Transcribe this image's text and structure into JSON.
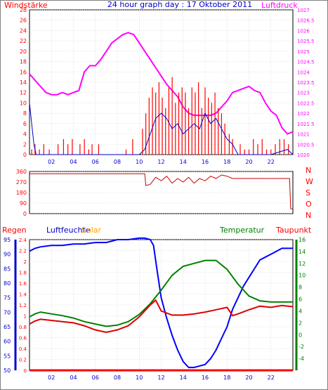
{
  "title": "24 hour graph day : 17 Oktober 2011",
  "colors": {
    "wind": "#ff0000",
    "gust": "#0000cc",
    "pressure": "#ff00ff",
    "direction": "#cc0000",
    "rain": "#ff0000",
    "humidity": "#0000ff",
    "solar": "#ffa500",
    "temperature": "#008000",
    "dewpoint": "#dd0000",
    "frame": "#000000",
    "grid": "#c0c0c0"
  },
  "chart_data": [
    {
      "type": "line",
      "labels": {
        "left": "Windstärke",
        "right": "Luftdruck"
      },
      "x_ticks": [
        "02",
        "04",
        "06",
        "08",
        "10",
        "12",
        "14",
        "16",
        "18",
        "20",
        "22"
      ],
      "x_range": [
        0,
        24
      ],
      "y_left": {
        "ticks": [
          "0",
          "2",
          "4",
          "6",
          "8",
          "10",
          "12",
          "14",
          "16",
          "18",
          "20",
          "22",
          "24",
          "26",
          "28"
        ],
        "range": [
          0,
          28
        ]
      },
      "y_right": {
        "ticks": [
          "1020",
          "1020.5",
          "1021",
          "1021.5",
          "1022",
          "1022.5",
          "1023",
          "1023.5",
          "1024",
          "1024.5",
          "1025",
          "1025.5",
          "1026",
          "1026.5",
          "1027"
        ],
        "range": [
          1020,
          1027
        ]
      },
      "series": [
        {
          "key": "pressure",
          "axis": "right",
          "x": [
            0,
            0.5,
            1,
            1.5,
            2,
            2.5,
            3,
            3.5,
            4,
            4.5,
            5,
            5.5,
            6,
            6.5,
            7,
            7.5,
            8,
            8.5,
            9,
            9.5,
            10,
            10.5,
            11,
            11.5,
            12,
            12.5,
            13,
            13.5,
            14,
            14.5,
            15,
            15.5,
            16,
            16.5,
            17,
            17.5,
            18,
            18.5,
            19,
            19.5,
            20,
            20.5,
            21,
            21.5,
            22,
            22.5,
            23,
            23.5,
            24
          ],
          "y": [
            1023.9,
            1023.6,
            1023.3,
            1023.0,
            1022.9,
            1022.9,
            1023.0,
            1022.9,
            1023.0,
            1023.1,
            1024.0,
            1024.3,
            1024.3,
            1024.6,
            1025.0,
            1025.4,
            1025.6,
            1025.8,
            1025.9,
            1025.8,
            1025.4,
            1025.0,
            1024.6,
            1024.2,
            1023.8,
            1023.4,
            1023.1,
            1022.8,
            1022.3,
            1022.0,
            1021.9,
            1021.9,
            1021.9,
            1021.9,
            1022.0,
            1022.3,
            1022.6,
            1023.0,
            1023.1,
            1023.2,
            1023.3,
            1023.1,
            1023.0,
            1022.5,
            1022.1,
            1021.9,
            1021.3,
            1021.0,
            1021.1
          ]
        },
        {
          "key": "wind",
          "axis": "left",
          "style": "bars",
          "x": [
            0.2,
            0.5,
            0.9,
            1.3,
            1.8,
            2.6,
            3.1,
            3.5,
            3.9,
            4.6,
            5.0,
            5.4,
            5.7,
            6.3,
            8.8,
            9.4,
            10.3,
            10.6,
            10.9,
            11.2,
            11.5,
            11.8,
            12.1,
            12.4,
            12.7,
            13.0,
            13.3,
            13.6,
            13.9,
            14.2,
            14.5,
            14.8,
            15.1,
            15.4,
            15.7,
            16.0,
            16.3,
            16.6,
            16.9,
            17.2,
            17.5,
            17.8,
            18.2,
            18.5,
            19.2,
            19.6,
            20.0,
            20.4,
            20.8,
            21.2,
            21.6,
            22.0,
            22.4,
            22.8,
            23.2,
            23.6
          ],
          "y": [
            1,
            2,
            1,
            2,
            1,
            2,
            3,
            2,
            3,
            2,
            3,
            1,
            2,
            2,
            1,
            3,
            5,
            8,
            11,
            13,
            12,
            14,
            11,
            9,
            13,
            15,
            10,
            12,
            13,
            12,
            9,
            13,
            12,
            14,
            9,
            13,
            11,
            10,
            12,
            9,
            8,
            6,
            4,
            3,
            2,
            1,
            1,
            3,
            2,
            3,
            1,
            1,
            2,
            3,
            3,
            2
          ]
        },
        {
          "key": "gust",
          "axis": "left",
          "x": [
            0,
            0.2,
            0.4,
            0.6,
            1,
            4,
            8,
            10,
            10.5,
            11,
            11.5,
            12,
            12.5,
            13,
            13.5,
            14,
            14.5,
            15,
            15.5,
            16,
            16.5,
            17,
            17.5,
            18,
            18.5,
            19,
            20,
            22,
            23.5,
            24
          ],
          "y": [
            10,
            6,
            2,
            0,
            0,
            0,
            0,
            0,
            1,
            4,
            7,
            8,
            7,
            5,
            6,
            4,
            5,
            6,
            5,
            8,
            6,
            7,
            5,
            3,
            2,
            0,
            0,
            0,
            1,
            0
          ]
        }
      ]
    },
    {
      "type": "line",
      "labels": {
        "right": [
          "N",
          "W",
          "S",
          "O",
          "N"
        ]
      },
      "x_range": [
        0,
        24
      ],
      "y_left": {
        "ticks": [
          "0",
          "90",
          "180",
          "270",
          "360"
        ],
        "range": [
          0,
          360
        ]
      },
      "series": [
        {
          "key": "direction",
          "x": [
            0,
            10.5,
            10.6,
            11,
            11.5,
            12,
            12.5,
            13,
            13.5,
            14,
            14.5,
            15,
            15.5,
            16,
            16.5,
            17,
            17.5,
            18,
            18.5,
            19,
            20,
            22,
            23.7,
            23.8,
            24
          ],
          "y": [
            340,
            340,
            240,
            250,
            310,
            280,
            320,
            260,
            300,
            270,
            310,
            260,
            300,
            280,
            320,
            300,
            330,
            320,
            300,
            300,
            300,
            300,
            300,
            40,
            40
          ]
        }
      ]
    },
    {
      "type": "line",
      "labels": {
        "left1": "Regen",
        "left2": "Luftfeuchte",
        "left3": "Solar",
        "right1": "Temperatur",
        "right2": "Taupunkt"
      },
      "x_ticks": [
        "02",
        "04",
        "06",
        "08",
        "10",
        "12",
        "14",
        "16",
        "18",
        "20",
        "22"
      ],
      "x_range": [
        0,
        24
      ],
      "y_rain": {
        "ticks": [
          "0",
          "0.2",
          "0.4",
          "0.6",
          "0.8",
          "1",
          "1.2",
          "1.4",
          "1.6",
          "1.8",
          "2",
          "2.2",
          "2.4"
        ],
        "range": [
          0,
          2.4
        ]
      },
      "y_humidity": {
        "ticks": [
          "50",
          "55",
          "60",
          "65",
          "70",
          "75",
          "80",
          "85",
          "90",
          "95"
        ],
        "range": [
          50,
          95
        ]
      },
      "y_temp": {
        "ticks": [
          "-4",
          "-2",
          "0",
          "2",
          "4",
          "6",
          "8",
          "10",
          "12",
          "14",
          "16"
        ],
        "range": [
          -6,
          16
        ]
      },
      "series": [
        {
          "key": "humidity",
          "axis": "humidity",
          "x": [
            0,
            0.5,
            1,
            2,
            3,
            4,
            5,
            6,
            7,
            8,
            9,
            10,
            10.5,
            11,
            11.3,
            11.6,
            12,
            12.5,
            13,
            13.5,
            14,
            14.5,
            15,
            15.5,
            16,
            16.5,
            17,
            17.5,
            18,
            18.5,
            19,
            19.5,
            20,
            21,
            22,
            23,
            24
          ],
          "y": [
            91,
            92,
            92.5,
            93,
            93,
            93.5,
            93.5,
            94,
            94,
            95,
            95,
            95.5,
            95.5,
            95,
            93,
            85,
            75,
            68,
            62,
            57,
            53,
            51,
            51,
            51.5,
            52,
            54,
            57,
            61,
            65,
            71,
            75,
            79,
            82,
            88,
            90,
            92,
            92
          ]
        },
        {
          "key": "temperature",
          "axis": "temp",
          "x": [
            0,
            0.5,
            1,
            2,
            3,
            4,
            5,
            6,
            7,
            8,
            9,
            10,
            11,
            12,
            13,
            14,
            15,
            16,
            17,
            18,
            19,
            20,
            21,
            22,
            23,
            24
          ],
          "y": [
            3.0,
            3.5,
            3.8,
            3.5,
            3.2,
            2.8,
            2.2,
            1.8,
            1.4,
            1.6,
            2.2,
            3.4,
            5.2,
            7.5,
            10.0,
            11.5,
            12.0,
            12.5,
            12.5,
            11.0,
            8.5,
            6.5,
            5.7,
            5.5,
            5.5,
            5.5
          ]
        },
        {
          "key": "dewpoint",
          "axis": "temp",
          "x": [
            0,
            0.5,
            1,
            2,
            3,
            4,
            5,
            6,
            7,
            8,
            9,
            10,
            11,
            11.5,
            12,
            13,
            14,
            15,
            16,
            17,
            18,
            18.5,
            19,
            20,
            21,
            22,
            23,
            24
          ],
          "y": [
            1.8,
            2.3,
            2.6,
            2.4,
            2.2,
            2.0,
            1.5,
            0.8,
            0.4,
            0.8,
            1.5,
            3.0,
            5.0,
            5.8,
            4.0,
            3.3,
            3.3,
            3.5,
            3.8,
            4.2,
            4.6,
            3.2,
            3.5,
            4.2,
            4.8,
            4.6,
            4.9,
            4.7
          ]
        },
        {
          "key": "solar",
          "axis": "rain",
          "x": [
            0,
            24
          ],
          "y": [
            0,
            0
          ]
        },
        {
          "key": "rain",
          "axis": "rain",
          "x": [
            0,
            24
          ],
          "y": [
            0,
            0
          ]
        }
      ]
    }
  ]
}
